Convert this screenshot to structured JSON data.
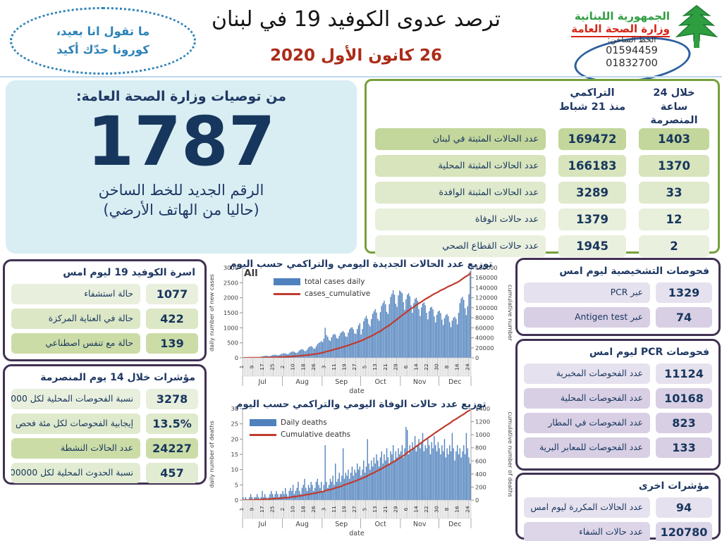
{
  "slogan": {
    "line1": "ما تقول انا بعيد،",
    "line2": "كورونا حدّك أكيد"
  },
  "header": {
    "title": "ترصد عدوى الكوفيد 19 في لبنان",
    "date": "26 كانون الأول 2020",
    "ministry_line1": "الجمهورية اللبنانية",
    "ministry_line2": "وزارة الصحة العامة",
    "hotline_label": "الخط الساخن:",
    "hotline_number1": "01594459",
    "hotline_number2": "01832700"
  },
  "recommendation_box": {
    "title": "من توصيات وزارة الصحة العامة:",
    "number": "1787",
    "line1": "الرقم الجديد للخط الساخن",
    "line2": "(حاليا من الهاتف الأرضي)",
    "bg_color": "#d9eef3"
  },
  "summary_table": {
    "border_color": "#76a03c",
    "header_24h_l1": "خلال 24 ساعة",
    "header_24h_l2": "المنصرمة",
    "header_cum_l1": "التراكمي",
    "header_cum_l2": "منذ 21 شباط",
    "row_colors": [
      "#c3d69b",
      "#d7e4bc",
      "#dfe9cb",
      "#e8efda",
      "#eaf0de"
    ],
    "rows": [
      {
        "label": "عدد الحالات المثبتة في لبنان",
        "cumulative": "169472",
        "last24h": "1403"
      },
      {
        "label": "عدد الحالات المثبتة المحلية",
        "cumulative": "166183",
        "last24h": "1370"
      },
      {
        "label": "عدد الحالات المثبتة الوافدة",
        "cumulative": "3289",
        "last24h": "33"
      },
      {
        "label": "عدد حالات الوفاة",
        "cumulative": "1379",
        "last24h": "12"
      },
      {
        "label": "عدد حالات القطاع الصحي",
        "cumulative": "1945",
        "last24h": "2"
      }
    ]
  },
  "beds_box": {
    "title": "اسرة الكوفيد 19 ليوم امس",
    "row_colors": [
      "#e9efdd",
      "#dce7c6",
      "#ccdca6"
    ],
    "rows": [
      {
        "value": "1077",
        "label": "حالة استشفاء"
      },
      {
        "value": "422",
        "label": "حالة في العناية المركزة"
      },
      {
        "value": "139",
        "label": "حالة مع تنفس اصطناعي"
      }
    ]
  },
  "indicators_14d_box": {
    "title": "مؤشرات خلال 14 يوم المنصرمة",
    "row_colors": [
      "#e9efdd",
      "#dfe9cc",
      "#ccdca6",
      "#e2ecd2"
    ],
    "rows": [
      {
        "value": "3278",
        "label": "نسبة الفحوصات  المحلية لكل 100000"
      },
      {
        "value": "13.5%",
        "label": "إيجابية الفحوصات لكل مئة فحص"
      },
      {
        "value": "24227",
        "label": "عدد الحالات النشطة"
      },
      {
        "value": "457",
        "label": "نسبة الحدوث المحلية لكل 100000"
      }
    ]
  },
  "diagnostic_tests_box": {
    "title": "فحوصات التشخيصية ليوم امس",
    "row_colors": [
      "#e6e1ee",
      "#d8cfe4"
    ],
    "rows": [
      {
        "value": "1329",
        "label": "عبر PCR"
      },
      {
        "value": "74",
        "label": "عبر Antigen test"
      }
    ]
  },
  "pcr_tests_box": {
    "title": "فحوصات  PCR ليوم امس",
    "row_colors": [
      "#e6e1ee",
      "#d8cfe4",
      "#d8cfe4",
      "#d8cfe4"
    ],
    "rows": [
      {
        "value": "11124",
        "label": "عدد الفحوصات المخبرية"
      },
      {
        "value": "10168",
        "label": "عدد الفحوصات المحلية"
      },
      {
        "value": "823",
        "label": "عدد الفحوصات في المطار"
      },
      {
        "value": "133",
        "label": "عدد الفحوصات للمعابر البرية"
      }
    ]
  },
  "other_indicators_box": {
    "title": "مؤشرات اخرى",
    "row_colors": [
      "#e6e1ee",
      "#ddd5e8"
    ],
    "rows": [
      {
        "value": "94",
        "label": "عدد الحالات المكررة  ليوم امس"
      },
      {
        "value": "120780",
        "label": "عدد حالات الشفاء"
      }
    ]
  },
  "chart_data": [
    {
      "type": "bar+line",
      "title": "توزيع عدد الحالات الجديدة اليومي والتراكمي حسب اليوم",
      "annotation": "All",
      "legend": [
        {
          "label": "total cases daily",
          "kind": "bar",
          "color": "#4f81bd"
        },
        {
          "label": "cases_cumulative",
          "kind": "line",
          "color": "#bf3b2f"
        }
      ],
      "ylabel_left": "daily number of new cases",
      "ylabel_right": "cumulative number",
      "xlabel": "date",
      "ylim_left": [
        0,
        3000
      ],
      "ytick_left": 500,
      "ylim_right": [
        0,
        180000
      ],
      "ytick_right": 20000,
      "day_tick_labels": [
        "1",
        "9",
        "17",
        "25",
        "2",
        "10",
        "18",
        "26",
        "3",
        "11",
        "19",
        "27",
        "5",
        "13",
        "21",
        "29",
        "6",
        "14",
        "22",
        "30",
        "8",
        "16",
        "24"
      ],
      "months": [
        {
          "label": "Jul",
          "days": 31
        },
        {
          "label": "Aug",
          "days": 31
        },
        {
          "label": "Sep",
          "days": 30
        },
        {
          "label": "Oct",
          "days": 31
        },
        {
          "label": "Nov",
          "days": 30
        },
        {
          "label": "Dec",
          "days": 25
        }
      ],
      "daily_values": [
        10,
        12,
        16,
        18,
        20,
        18,
        15,
        14,
        18,
        24,
        28,
        30,
        28,
        24,
        40,
        50,
        62,
        68,
        72,
        66,
        56,
        60,
        75,
        92,
        100,
        105,
        98,
        84,
        90,
        110,
        132,
        145,
        155,
        150,
        128,
        120,
        150,
        185,
        205,
        215,
        200,
        170,
        165,
        205,
        250,
        275,
        290,
        270,
        230,
        225,
        280,
        340,
        372,
        392,
        365,
        312,
        305,
        378,
        455,
        498,
        522,
        560,
        520,
        640,
        1000,
        760,
        700,
        600,
        560,
        680,
        760,
        800,
        770,
        660,
        640,
        735,
        826,
        868,
        890,
        833,
        714,
        700,
        840,
        952,
        1000,
        1020,
        950,
        810,
        800,
        960,
        1080,
        1150,
        780,
        960,
        1220,
        1320,
        1400,
        1300,
        1120,
        1050,
        1290,
        1470,
        1550,
        1620,
        1510,
        1300,
        1235,
        1520,
        1730,
        1820,
        1900,
        1780,
        1530,
        1460,
        1790,
        2030,
        2130,
        2250,
        2100,
        1800,
        1700,
        2080,
        2240,
        2200,
        2150,
        1850,
        1600,
        1950,
        2100,
        2150,
        2050,
        1750,
        1500,
        1820,
        1960,
        2000,
        1900,
        1620,
        1390,
        1680,
        1810,
        1850,
        1750,
        1500,
        1280,
        1550,
        1670,
        1700,
        1610,
        1380,
        1180,
        1430,
        1540,
        1570,
        1490,
        1275,
        1090,
        1320,
        1420,
        1460,
        1390,
        1190,
        1020,
        1240,
        1335,
        1370,
        1300,
        1115,
        1500,
        1820,
        1980,
        2030,
        1930,
        1650,
        1420,
        1720,
        2120,
        2880
      ],
      "cumulative_final": 169472
    },
    {
      "type": "bar+line",
      "title": "توزيع عدد حالات  الوفاة اليومي والتراكمي حسب اليوم",
      "annotation": "",
      "legend": [
        {
          "label": "Daily deaths",
          "kind": "bar",
          "color": "#4f81bd"
        },
        {
          "label": "Cumulative deaths",
          "kind": "line",
          "color": "#bf3b2f"
        }
      ],
      "ylabel_left": "daily number of deaths",
      "ylabel_right": "cumulative number of deaths",
      "xlabel": "date",
      "ylim_left": [
        0,
        30
      ],
      "ytick_left": 5,
      "ylim_right": [
        0,
        1400
      ],
      "ytick_right": 200,
      "day_tick_labels": [
        "1",
        "9",
        "17",
        "25",
        "2",
        "10",
        "18",
        "26",
        "3",
        "11",
        "19",
        "27",
        "5",
        "13",
        "21",
        "29",
        "6",
        "14",
        "22",
        "30",
        "8",
        "16",
        "24"
      ],
      "months": [
        {
          "label": "Jul",
          "days": 31
        },
        {
          "label": "Aug",
          "days": 31
        },
        {
          "label": "Sep",
          "days": 30
        },
        {
          "label": "Oct",
          "days": 31
        },
        {
          "label": "Nov",
          "days": 30
        },
        {
          "label": "Dec",
          "days": 25
        }
      ],
      "daily_values": [
        1,
        0,
        1,
        0,
        0,
        1,
        2,
        1,
        0,
        1,
        1,
        2,
        1,
        0,
        1,
        3,
        1,
        2,
        1,
        0,
        1,
        2,
        3,
        2,
        1,
        2,
        3,
        2,
        1,
        2,
        2,
        3,
        2,
        4,
        2,
        1,
        3,
        4,
        3,
        5,
        2,
        3,
        4,
        6,
        3,
        2,
        4,
        5,
        7,
        4,
        3,
        5,
        4,
        6,
        5,
        3,
        4,
        6,
        7,
        5,
        4,
        6,
        3,
        5,
        18,
        6,
        4,
        5,
        7,
        6,
        8,
        5,
        12,
        6,
        7,
        9,
        6,
        8,
        17,
        7,
        9,
        8,
        10,
        7,
        9,
        11,
        8,
        10,
        9,
        12,
        10,
        11,
        8,
        10,
        13,
        9,
        11,
        20,
        12,
        10,
        13,
        11,
        14,
        12,
        15,
        13,
        11,
        14,
        16,
        12,
        15,
        13,
        17,
        14,
        12,
        16,
        15,
        18,
        13,
        16,
        14,
        17,
        15,
        16,
        18,
        14,
        17,
        24,
        23,
        15,
        18,
        16,
        19,
        17,
        21,
        16,
        18,
        20,
        17,
        19,
        22,
        16,
        18,
        17,
        20,
        18,
        15,
        19,
        17,
        21,
        18,
        16,
        19,
        17,
        15,
        18,
        16,
        20,
        14,
        17,
        15,
        18,
        16,
        22,
        17,
        13,
        16,
        18,
        15,
        17,
        14,
        16,
        18,
        15,
        22,
        17,
        14,
        12
      ],
      "cumulative_final": 1379
    }
  ]
}
